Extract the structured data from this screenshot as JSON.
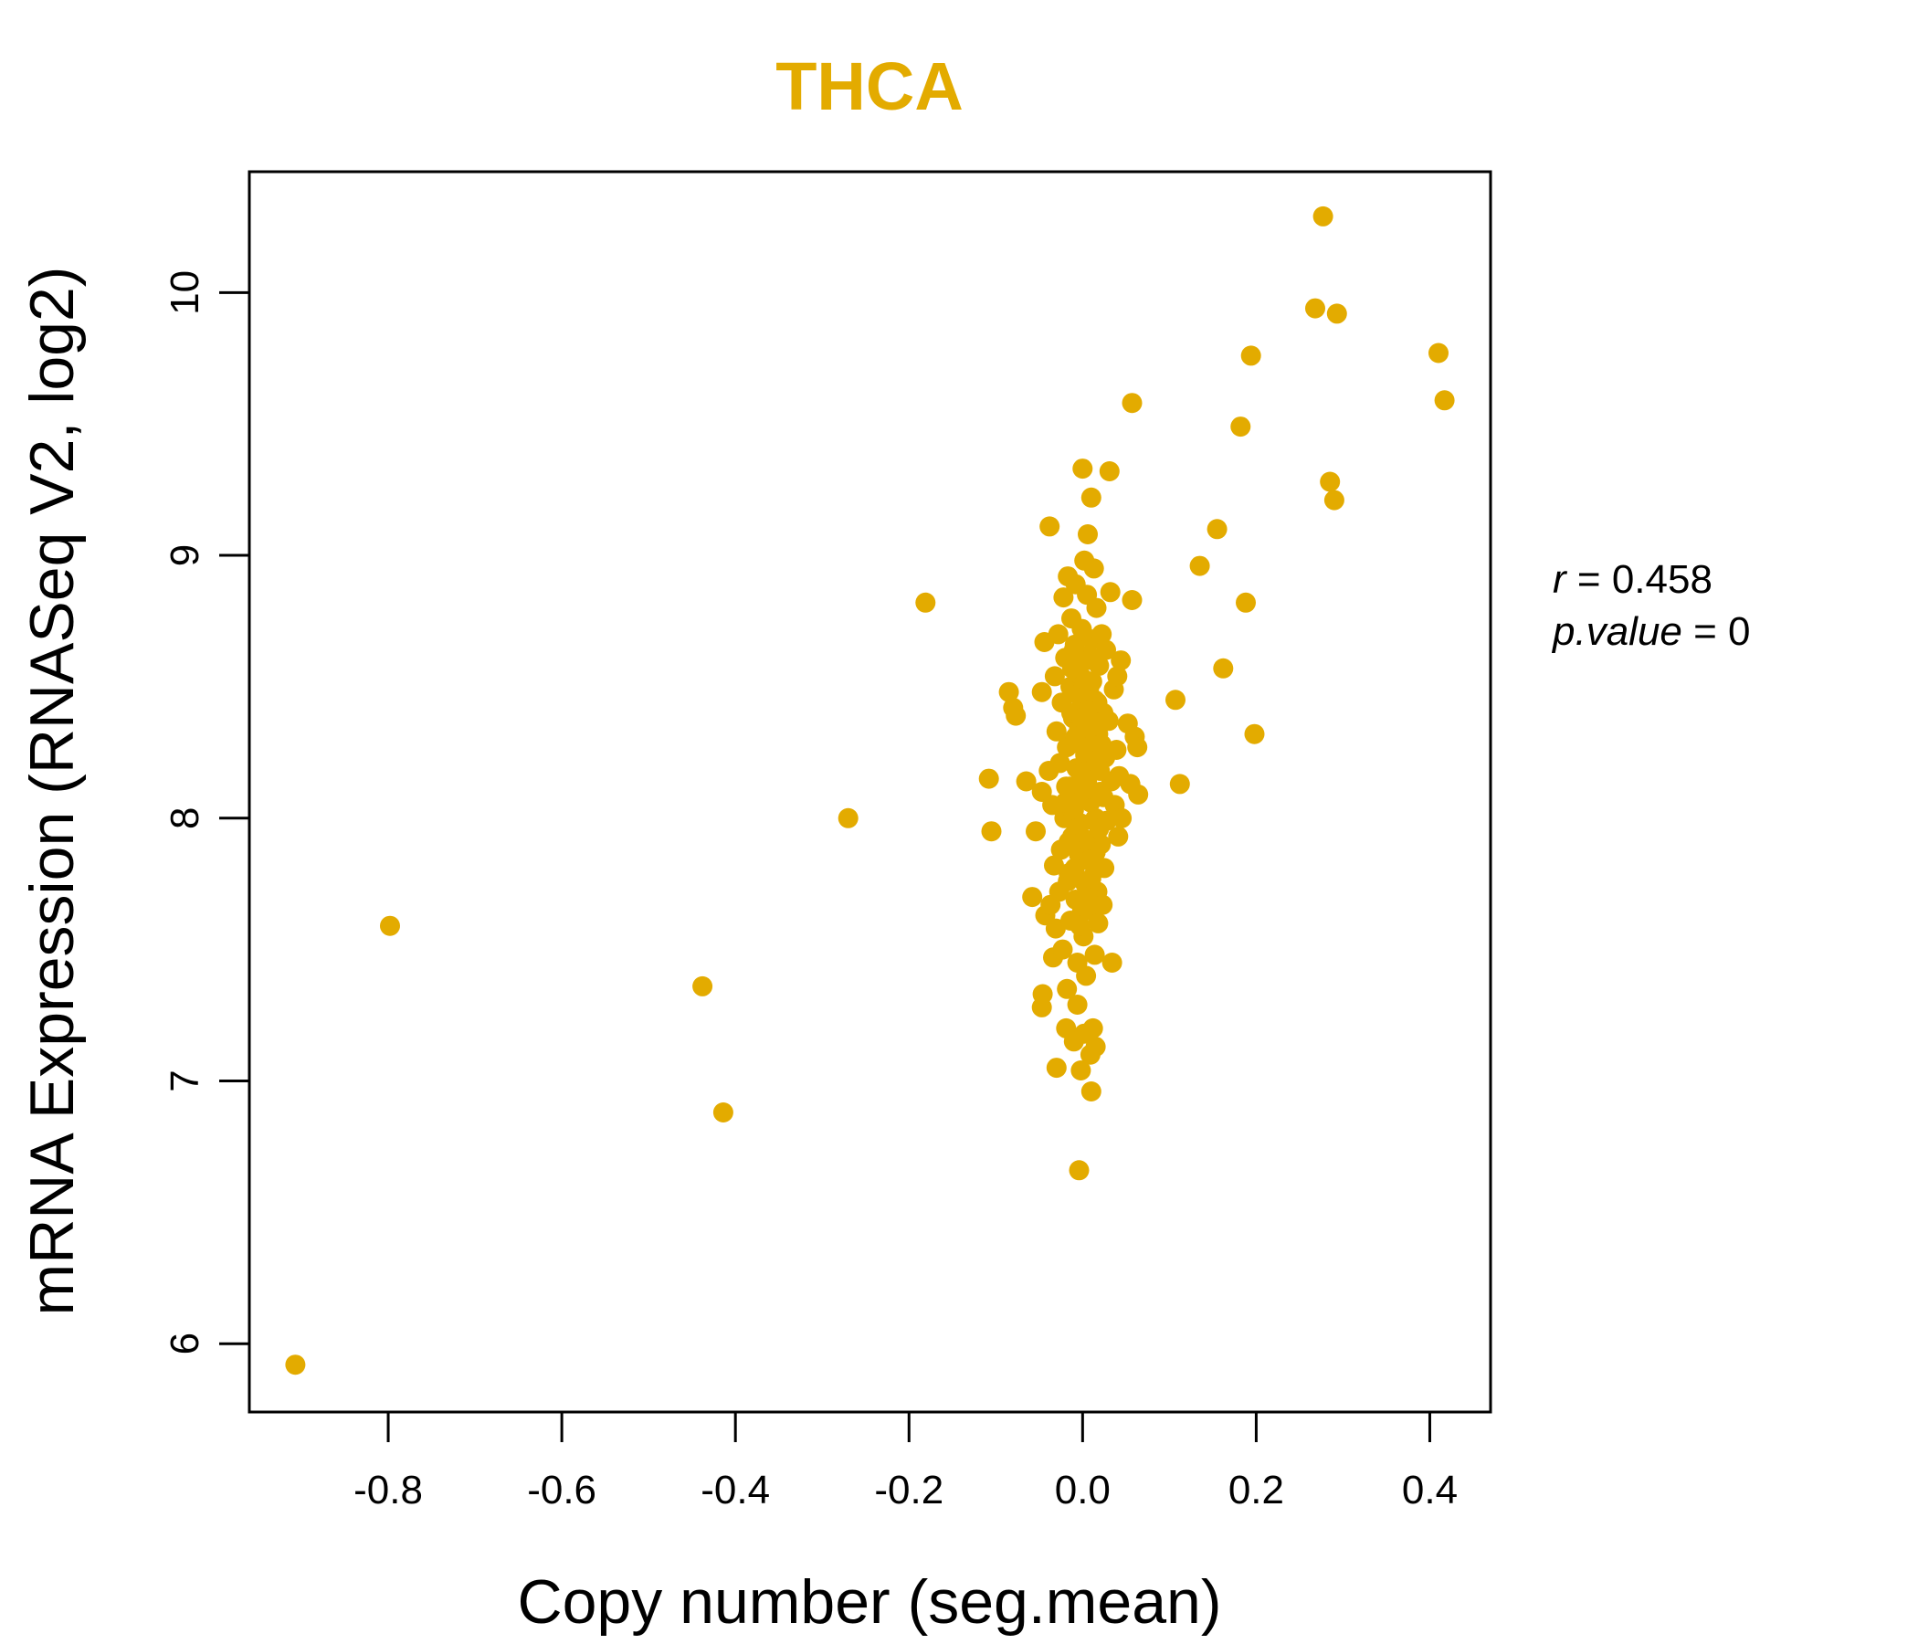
{
  "chart_data": {
    "type": "scatter",
    "title": "THCA",
    "title_color": "#E3AB00",
    "point_color": "#E3AB00",
    "xlabel": "Copy number (seg.mean)",
    "ylabel": "mRNA Expression (RNASeq V2, log2)",
    "xlim": [
      -0.96,
      0.47
    ],
    "ylim": [
      5.74,
      10.46
    ],
    "x_ticks": [
      -0.8,
      -0.6,
      -0.4,
      -0.2,
      0.0,
      0.2,
      0.4
    ],
    "x_tick_labels": [
      "-0.8",
      "-0.6",
      "-0.4",
      "-0.2",
      "0.0",
      "0.2",
      "0.4"
    ],
    "y_ticks": [
      6,
      7,
      8,
      9,
      10
    ],
    "y_tick_labels": [
      "6",
      "7",
      "8",
      "9",
      "10"
    ],
    "stats": {
      "r_label": "r",
      "r_value": "0.458",
      "p_label": "p.value",
      "p_value": "0"
    },
    "points": [
      [
        -0.907,
        5.92
      ],
      [
        -0.798,
        7.59
      ],
      [
        -0.438,
        7.36
      ],
      [
        -0.414,
        6.88
      ],
      [
        -0.27,
        8.0
      ],
      [
        -0.181,
        8.82
      ],
      [
        -0.108,
        8.15
      ],
      [
        -0.105,
        7.95
      ],
      [
        -0.085,
        8.48
      ],
      [
        -0.08,
        8.42
      ],
      [
        -0.077,
        8.39
      ],
      [
        -0.065,
        8.14
      ],
      [
        -0.058,
        7.7
      ],
      [
        -0.054,
        7.95
      ],
      [
        -0.047,
        8.1
      ],
      [
        -0.047,
        8.48
      ],
      [
        -0.047,
        7.28
      ],
      [
        -0.046,
        7.33
      ],
      [
        -0.044,
        8.67
      ],
      [
        -0.043,
        7.63
      ],
      [
        -0.039,
        8.18
      ],
      [
        -0.038,
        9.11
      ],
      [
        -0.037,
        7.67
      ],
      [
        -0.035,
        8.05
      ],
      [
        -0.034,
        7.47
      ],
      [
        -0.033,
        7.82
      ],
      [
        -0.032,
        8.54
      ],
      [
        -0.031,
        7.58
      ],
      [
        -0.03,
        8.33
      ],
      [
        -0.03,
        7.05
      ],
      [
        -0.028,
        8.7
      ],
      [
        -0.027,
        7.72
      ],
      [
        -0.026,
        8.21
      ],
      [
        -0.025,
        7.88
      ],
      [
        -0.024,
        8.44
      ],
      [
        -0.023,
        7.5
      ],
      [
        -0.022,
        8.84
      ],
      [
        -0.021,
        8.0
      ],
      [
        -0.02,
        8.61
      ],
      [
        -0.019,
        7.2
      ],
      [
        -0.018,
        8.27
      ],
      [
        -0.018,
        7.35
      ],
      [
        -0.017,
        8.92
      ],
      [
        -0.016,
        7.79
      ],
      [
        -0.015,
        8.12
      ],
      [
        -0.014,
        7.61
      ],
      [
        -0.014,
        8.5
      ],
      [
        -0.013,
        8.76
      ],
      [
        -0.012,
        7.93
      ],
      [
        -0.011,
        8.38
      ],
      [
        -0.01,
        7.15
      ],
      [
        -0.01,
        8.03
      ],
      [
        -0.009,
        8.66
      ],
      [
        -0.008,
        7.69
      ],
      [
        -0.008,
        8.89
      ],
      [
        -0.007,
        8.19
      ],
      [
        -0.006,
        7.45
      ],
      [
        -0.006,
        7.29
      ],
      [
        -0.005,
        8.55
      ],
      [
        -0.004,
        7.86
      ],
      [
        -0.004,
        6.66
      ],
      [
        -0.003,
        8.3
      ],
      [
        -0.002,
        7.04
      ],
      [
        -0.002,
        7.98
      ],
      [
        -0.001,
        8.72
      ],
      [
        0.0,
        8.09
      ],
      [
        0.0,
        9.33
      ],
      [
        0.001,
        7.55
      ],
      [
        0.001,
        8.42
      ],
      [
        0.002,
        8.98
      ],
      [
        0.002,
        7.18
      ],
      [
        0.003,
        8.24
      ],
      [
        0.003,
        7.75
      ],
      [
        0.004,
        8.6
      ],
      [
        0.004,
        7.4
      ],
      [
        0.005,
        8.14
      ],
      [
        0.005,
        8.85
      ],
      [
        0.006,
        7.9
      ],
      [
        0.006,
        9.08
      ],
      [
        0.007,
        8.35
      ],
      [
        0.008,
        7.65
      ],
      [
        0.008,
        8.5
      ],
      [
        0.009,
        7.1
      ],
      [
        0.009,
        8.06
      ],
      [
        0.01,
        9.22
      ],
      [
        0.01,
        6.96
      ],
      [
        0.011,
        8.68
      ],
      [
        0.011,
        7.83
      ],
      [
        0.012,
        8.2
      ],
      [
        0.012,
        7.2
      ],
      [
        0.013,
        8.95
      ],
      [
        0.014,
        7.48
      ],
      [
        0.014,
        8.45
      ],
      [
        0.015,
        8.0
      ],
      [
        0.015,
        7.13
      ],
      [
        0.016,
        8.8
      ],
      [
        0.017,
        7.72
      ],
      [
        0.018,
        8.32
      ],
      [
        0.018,
        7.6
      ],
      [
        0.019,
        8.58
      ],
      [
        0.02,
        8.1
      ],
      [
        0.021,
        7.9
      ],
      [
        0.022,
        8.7
      ],
      [
        0.023,
        7.67
      ],
      [
        0.024,
        8.4
      ],
      [
        0.025,
        7.81
      ],
      [
        0.026,
        8.23
      ],
      [
        0.027,
        8.64
      ],
      [
        0.028,
        7.99
      ],
      [
        0.03,
        8.37
      ],
      [
        0.031,
        9.32
      ],
      [
        0.032,
        8.86
      ],
      [
        0.033,
        8.14
      ],
      [
        0.034,
        7.45
      ],
      [
        0.036,
        8.49
      ],
      [
        0.037,
        8.05
      ],
      [
        0.039,
        8.26
      ],
      [
        0.04,
        8.54
      ],
      [
        0.041,
        7.93
      ],
      [
        0.042,
        8.16
      ],
      [
        0.044,
        8.6
      ],
      [
        0.045,
        8.0
      ],
      [
        0.052,
        8.36
      ],
      [
        0.055,
        8.13
      ],
      [
        0.057,
        8.83
      ],
      [
        0.057,
        9.58
      ],
      [
        0.06,
        8.31
      ],
      [
        0.063,
        8.27
      ],
      [
        0.064,
        8.09
      ],
      [
        0.107,
        8.45
      ],
      [
        0.112,
        8.13
      ],
      [
        0.135,
        8.96
      ],
      [
        0.155,
        9.1
      ],
      [
        0.162,
        8.57
      ],
      [
        0.182,
        9.49
      ],
      [
        0.188,
        8.82
      ],
      [
        0.194,
        9.76
      ],
      [
        0.198,
        8.32
      ],
      [
        0.268,
        9.94
      ],
      [
        0.277,
        10.29
      ],
      [
        0.285,
        9.28
      ],
      [
        0.29,
        9.21
      ],
      [
        0.293,
        9.92
      ],
      [
        0.41,
        9.77
      ],
      [
        0.417,
        9.59
      ],
      [
        -0.004,
        8.34
      ],
      [
        0.004,
        8.11
      ],
      [
        -0.011,
        8.02
      ],
      [
        0.009,
        8.29
      ],
      [
        0.002,
        7.92
      ],
      [
        -0.006,
        8.47
      ],
      [
        0.013,
        7.99
      ],
      [
        -0.015,
        8.28
      ],
      [
        0.017,
        8.44
      ],
      [
        -0.002,
        8.17
      ],
      [
        0.006,
        7.73
      ],
      [
        -0.009,
        7.81
      ],
      [
        0.011,
        8.52
      ],
      [
        -0.02,
        8.06
      ],
      [
        0.02,
        8.18
      ],
      [
        -0.001,
        7.64
      ],
      [
        0.007,
        8.62
      ],
      [
        -0.013,
        8.4
      ],
      [
        0.015,
        7.87
      ],
      [
        0.003,
        8.25
      ],
      [
        -0.007,
        7.96
      ],
      [
        0.012,
        8.35
      ],
      [
        -0.017,
        7.76
      ],
      [
        0.001,
        8.53
      ],
      [
        0.024,
        8.08
      ],
      [
        -0.003,
        7.59
      ],
      [
        0.008,
        7.84
      ],
      [
        -0.012,
        8.57
      ],
      [
        0.016,
        8.22
      ],
      [
        -0.005,
        8.13
      ],
      [
        0.005,
        8.41
      ],
      [
        -0.016,
        7.91
      ],
      [
        0.019,
        7.96
      ],
      [
        -0.008,
        8.31
      ],
      [
        0.01,
        7.77
      ],
      [
        -0.001,
        8.38
      ],
      [
        0.003,
        7.7
      ],
      [
        -0.019,
        8.12
      ],
      [
        0.022,
        8.28
      ],
      [
        -0.01,
        8.64
      ]
    ]
  }
}
